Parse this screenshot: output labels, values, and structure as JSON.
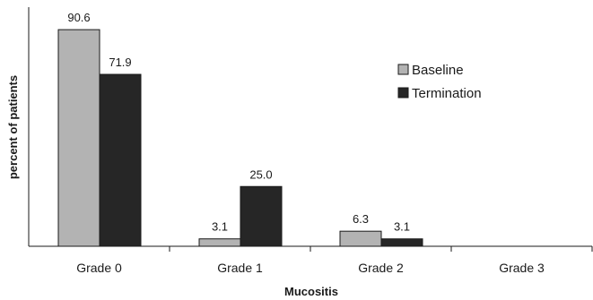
{
  "chart_data": {
    "type": "bar",
    "title": "",
    "xlabel": "Mucositis",
    "ylabel": "percent of patients",
    "categories": [
      "Grade 0",
      "Grade 1",
      "Grade 2",
      "Grade 3"
    ],
    "series": [
      {
        "name": "Baseline",
        "values": [
          90.6,
          3.1,
          6.3,
          null
        ],
        "labels": [
          "90.6",
          "3.1",
          "6.3",
          ""
        ],
        "color": "#b3b3b3"
      },
      {
        "name": "Termination",
        "values": [
          71.9,
          25.0,
          3.1,
          null
        ],
        "labels": [
          "71.9",
          "25.0",
          "3.1",
          ""
        ],
        "color": "#262626"
      }
    ],
    "ylim": [
      0,
      100
    ],
    "grid": false,
    "legend_position": "right"
  }
}
